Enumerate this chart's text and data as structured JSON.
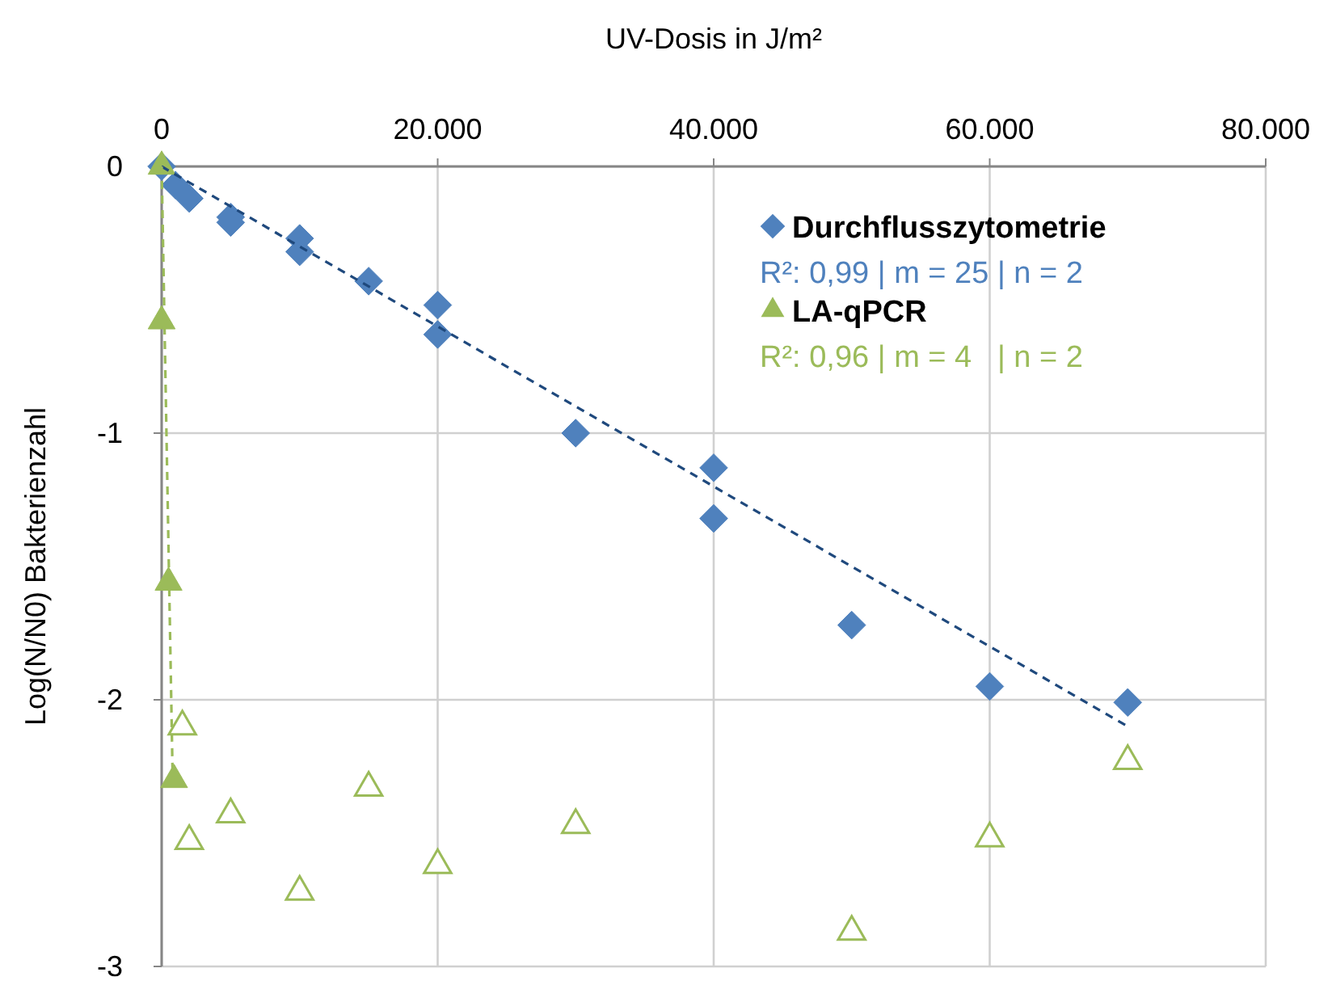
{
  "chart_data": {
    "type": "scatter",
    "xlabel": "UV-Dosis in J/m²",
    "ylabel": "Log(N/N0) Bakterienzahl",
    "xlim": [
      0,
      80000
    ],
    "xticks": [
      0,
      {
        "value": 20000,
        "label": "20.000"
      },
      {
        "value": 40000,
        "label": "40.000"
      },
      {
        "value": 60000,
        "label": "60.000"
      },
      {
        "value": 80000,
        "label": "80.000"
      }
    ],
    "ylim": [
      -3,
      0
    ],
    "yticks": [
      -3,
      -2,
      -1,
      0
    ],
    "grid": true,
    "legend": "top right",
    "annotations": [
      "R²: 0,99 | m = 25 | n = 2",
      "R²: 0,96 | m = 4   | n = 2"
    ],
    "series": [
      {
        "name": "Durchflusszytometrie",
        "color": "#4f81bd",
        "marker": "diamond",
        "x": [
          0,
          1000,
          2000,
          5000,
          5000,
          10000,
          10000,
          15000,
          20000,
          20000,
          30000,
          40000,
          40000,
          50000,
          60000,
          70000
        ],
        "values": [
          0,
          -0.07,
          -0.12,
          -0.19,
          -0.21,
          -0.27,
          -0.32,
          -0.43,
          -0.52,
          -0.63,
          -1.0,
          -1.13,
          -1.32,
          -1.72,
          -1.95,
          -2.01
        ]
      },
      {
        "name": "LA-qPCR",
        "color": "#9bbb59",
        "marker": "triangle",
        "x": [
          0,
          0,
          500,
          900
        ],
        "values": [
          0,
          -0.58,
          -1.56,
          -2.3
        ]
      },
      {
        "color": "#9bbb59",
        "marker": "triangle",
        "x": [
          1500,
          2000,
          5000,
          10000,
          15000,
          20000,
          30000,
          50000,
          60000,
          70000
        ],
        "values": [
          -2.1,
          -2.53,
          -2.43,
          -2.72,
          -2.33,
          -2.62,
          -2.47,
          -2.87,
          -2.52,
          -2.23
        ]
      },
      {
        "type": "line",
        "color": "#1f497d",
        "line_style": "dashed",
        "x": [
          0,
          70000
        ],
        "values": [
          0,
          -2.1
        ]
      },
      {
        "type": "line",
        "color": "#9bbb59",
        "line_style": "dashed",
        "x": [
          0,
          800
        ],
        "values": [
          0,
          -2.3
        ]
      }
    ]
  }
}
